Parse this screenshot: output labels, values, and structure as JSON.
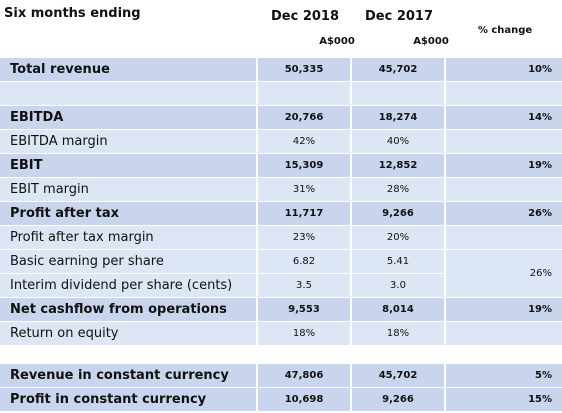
{
  "header": {
    "title": "Six months ending",
    "col1": "Dec 2018",
    "col2": "Dec 2017",
    "unit1": "A$000",
    "unit2": "A$000",
    "change": "% change"
  },
  "sections": [
    {
      "rows": [
        {
          "label": "Total revenue",
          "bold": true,
          "v1": "50,335",
          "v2": "45,702",
          "change": "10%"
        }
      ]
    },
    {
      "rows": [
        {
          "label": "EBITDA",
          "bold": true,
          "v1": "20,766",
          "v2": "18,274",
          "change": "14%"
        },
        {
          "label": "EBITDA margin",
          "bold": false,
          "v1": "42%",
          "v2": "40%"
        },
        {
          "label": "EBIT",
          "bold": true,
          "v1": "15,309",
          "v2": "12,852",
          "change": "19%"
        },
        {
          "label": "EBIT margin",
          "bold": false,
          "v1": "31%",
          "v2": "28%"
        },
        {
          "label": "Profit after tax",
          "bold": true,
          "v1": "11,717",
          "v2": "9,266",
          "change": "26%"
        },
        {
          "label": "Profit after tax margin",
          "bold": false,
          "v1": "23%",
          "v2": "20%"
        },
        {
          "label": "Basic earning per share",
          "bold": false,
          "v1": "6.82",
          "v2": "5.41",
          "change": "26%",
          "change_span": 2
        },
        {
          "label": "Interim dividend per share (cents)",
          "bold": false,
          "v1": "3.5",
          "v2": "3.0"
        },
        {
          "label": "Net cashflow from operations",
          "bold": true,
          "v1": "9,553",
          "v2": "8,014",
          "change": "19%"
        },
        {
          "label": "Return on equity",
          "bold": false,
          "v1": "18%",
          "v2": "18%"
        }
      ]
    },
    {
      "rows": [
        {
          "label": "Revenue in constant currency",
          "bold": true,
          "v1": "47,806",
          "v2": "45,702",
          "change": "5%"
        },
        {
          "label": "Profit in constant currency",
          "bold": true,
          "v1": "10,698",
          "v2": "9,266",
          "change": "15%"
        }
      ]
    }
  ]
}
